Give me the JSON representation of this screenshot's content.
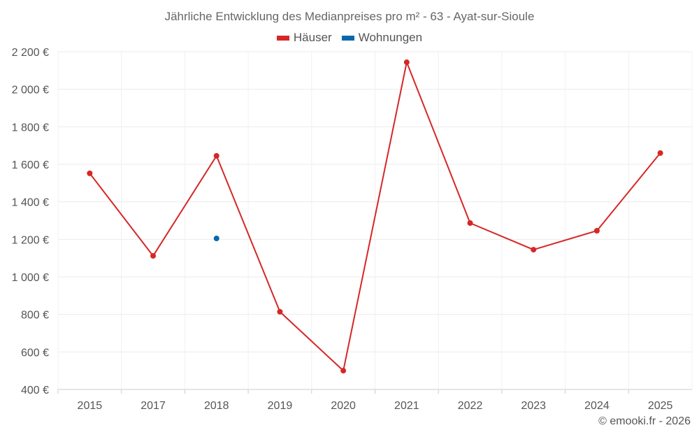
{
  "chart_data": {
    "type": "line",
    "title": "Jährliche Entwicklung des Medianpreises pro m² - 63 - Ayat-sur-Sioule",
    "categories": [
      "2015",
      "2017",
      "2018",
      "2019",
      "2020",
      "2021",
      "2022",
      "2023",
      "2024",
      "2025"
    ],
    "series": [
      {
        "name": "Häuser",
        "color": "#d62728",
        "values": [
          1552,
          1112,
          1645,
          814,
          500,
          2144,
          1287,
          1145,
          1246,
          1660
        ]
      },
      {
        "name": "Wohnungen",
        "color": "#0868ac",
        "values": [
          null,
          null,
          1205,
          null,
          null,
          null,
          null,
          null,
          null,
          null
        ]
      }
    ],
    "ylim": [
      400,
      2200
    ],
    "yticks": [
      400,
      600,
      800,
      1000,
      1200,
      1400,
      1600,
      1800,
      2000,
      2200
    ],
    "ytick_labels": [
      "400 €",
      "600 €",
      "800 €",
      "1 000 €",
      "1 200 €",
      "1 400 €",
      "1 600 €",
      "1 800 €",
      "2 000 €",
      "2 200 €"
    ],
    "grid": true,
    "legend": "top-center",
    "xlabel": "",
    "ylabel": ""
  },
  "credit": "© emooki.fr - 2026"
}
